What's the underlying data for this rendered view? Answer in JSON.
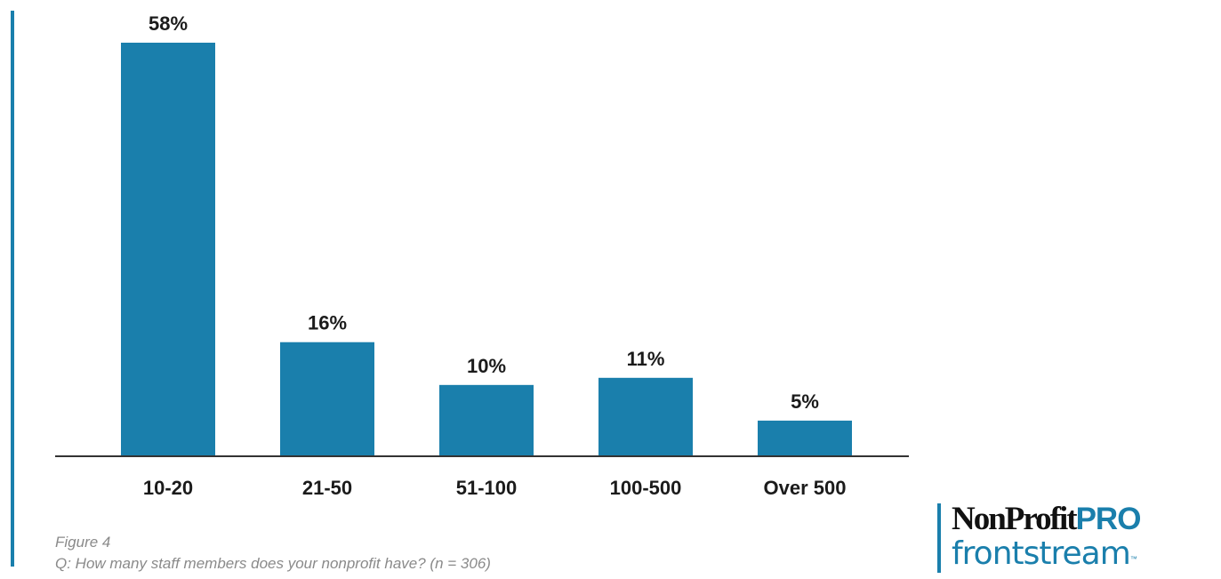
{
  "chart_data": {
    "type": "bar",
    "categories": [
      "10-20",
      "21-50",
      "51-100",
      "100-500",
      "Over 500"
    ],
    "values": [
      58,
      16,
      10,
      11,
      5
    ],
    "value_labels": [
      "58%",
      "16%",
      "10%",
      "11%",
      "5%"
    ],
    "title": "",
    "xlabel": "",
    "ylabel": "",
    "ylim": [
      0,
      58
    ],
    "grid": false,
    "legend": "none"
  },
  "caption": {
    "figure": "Figure 4",
    "question": "Q: How many staff members does your nonprofit have?  (n = 306)"
  },
  "logo": {
    "nonprofit_text": "NonProfit",
    "pro_text": "PRO",
    "frontstream_text": "frontstream",
    "tm": "™"
  },
  "colors": {
    "bar": "#1a7fac",
    "accent": "#1a7fac",
    "axis": "#333333",
    "caption": "#8a8a8a"
  }
}
